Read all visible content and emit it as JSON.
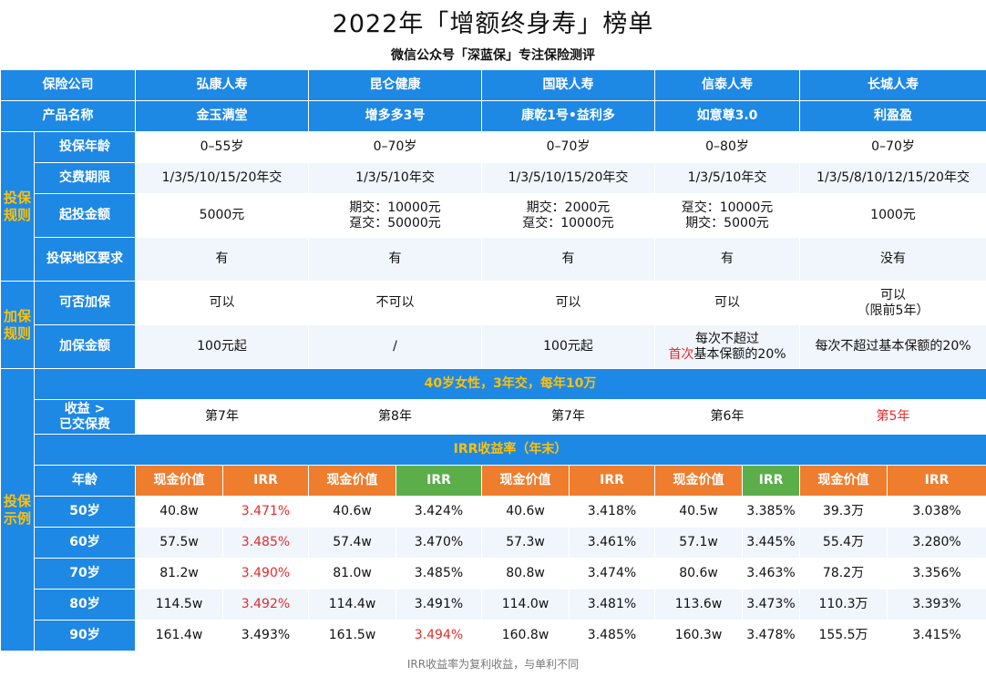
{
  "page": {
    "title": "2022年「增额终身寿」榜单",
    "subtitle": "微信公众号「深蓝保」专注保险测评",
    "footnote": "IRR收益率为复利收益，与单利不同"
  },
  "table": {
    "corner_label": "保险公司",
    "companies": [
      "弘康人寿",
      "昆仑健康",
      "国联人寿",
      "信泰人寿",
      "长城人寿"
    ],
    "product_label": "产品名称",
    "products": [
      "金玉满堂",
      "增多多3号",
      "康乾1号•益利多",
      "如意尊3.0",
      "利盈盈"
    ],
    "groups": {
      "rules": "投保规则",
      "add": "加保规则",
      "example": "投保示例"
    },
    "rules": [
      {
        "label": "投保年龄",
        "values": [
          "0–55岁",
          "0–70岁",
          "0–70岁",
          "0–80岁",
          "0–70岁"
        ]
      },
      {
        "label": "交费期限",
        "values": [
          "1/3/5/10/15/20年交",
          "1/3/5/10年交",
          "1/3/5/10/15/20年交",
          "1/3/5/10年交",
          "1/3/5/8/10/12/15/20年交"
        ]
      },
      {
        "label": "起投金额",
        "values": [
          "5000元",
          "期交：10000元\n趸交：50000元",
          "期交：2000元\n趸交：10000元",
          "趸交：10000元\n期交：5000元",
          "1000元"
        ]
      },
      {
        "label": "投保地区要求",
        "values": [
          "有",
          "有",
          "有",
          "有",
          "没有"
        ]
      }
    ],
    "add": [
      {
        "label": "可否加保",
        "values": [
          "可以",
          "不可以",
          "可以",
          "可以",
          "可以\n（限前5年）"
        ]
      },
      {
        "label": "加保金额",
        "values": [
          "100元起",
          "/",
          "100元起",
          "",
          "每次不超过基本保额的20%"
        ],
        "special": {
          "before": "每次不超过",
          "red": "首次",
          "after": "基本保额的20%"
        }
      }
    ],
    "example": {
      "scenario": "40岁女性，3年交，每年10万",
      "breakeven_label": "收益 >\n已交保费",
      "breakeven_values": [
        "第7年",
        "第8年",
        "第7年",
        "第6年",
        "第5年"
      ],
      "irr_band": "IRR收益率（年末）",
      "age_label": "年龄",
      "cv_label": "现金价值",
      "irr_label": "IRR",
      "rows": [
        {
          "age": "50岁",
          "cells": [
            "40.8w",
            "3.471%",
            "40.6w",
            "3.424%",
            "40.6w",
            "3.418%",
            "40.5w",
            "3.385%",
            "39.3万",
            "3.038%"
          ],
          "red": [
            1
          ]
        },
        {
          "age": "60岁",
          "cells": [
            "57.5w",
            "3.485%",
            "57.4w",
            "3.470%",
            "57.3w",
            "3.461%",
            "57.1w",
            "3.445%",
            "55.4万",
            "3.280%"
          ],
          "red": [
            1
          ]
        },
        {
          "age": "70岁",
          "cells": [
            "81.2w",
            "3.490%",
            "81.0w",
            "3.485%",
            "80.8w",
            "3.474%",
            "80.6w",
            "3.463%",
            "78.2万",
            "3.356%"
          ],
          "red": [
            1
          ]
        },
        {
          "age": "80岁",
          "cells": [
            "114.5w",
            "3.492%",
            "114.4w",
            "3.491%",
            "114.0w",
            "3.481%",
            "113.6w",
            "3.473%",
            "110.3万",
            "3.393%"
          ],
          "red": [
            1
          ]
        },
        {
          "age": "90岁",
          "cells": [
            "161.4w",
            "3.493%",
            "161.5w",
            "3.494%",
            "160.8w",
            "3.485%",
            "160.3w",
            "3.478%",
            "155.5万",
            "3.415%"
          ],
          "red": [
            3
          ]
        }
      ]
    }
  },
  "colors": {
    "header_blue": "#1e88e5",
    "group_yellow": "#ffc107",
    "cash_value_orange": "#ef7d2e",
    "irr_green": "#5cae4b",
    "highlight_red": "#e52b2b",
    "row_tint": "#f1f6fd"
  }
}
